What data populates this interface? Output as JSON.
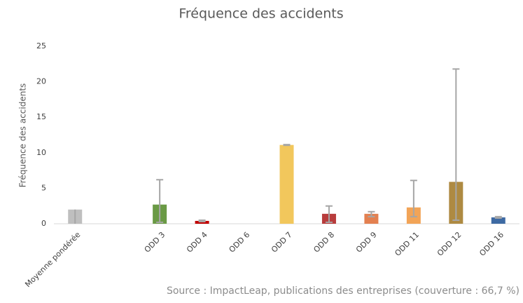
{
  "chart_data": {
    "type": "bar",
    "title": "Fréquence des accidents",
    "y_label": "Fréquence des accidents",
    "source": "Source : ImpactLeap, publications des entreprises (couverture : 66,7 %)",
    "categories": [
      "Moyenne pondérée",
      null,
      "ODD 3",
      "ODD 4",
      "ODD 6",
      "ODD 7",
      "ODD 8",
      "ODD 9",
      "ODD 11",
      "ODD 12",
      "ODD 16"
    ],
    "values": [
      2.0,
      null,
      2.7,
      0.4,
      0,
      11.1,
      1.4,
      1.4,
      2.3,
      5.9,
      0.9
    ],
    "error_plus": [
      0,
      null,
      3.5,
      0.1,
      0,
      0.05,
      1.1,
      0.3,
      3.8,
      15.9,
      0.1
    ],
    "error_minus": [
      2.0,
      null,
      2.5,
      0.1,
      0,
      0.05,
      1.2,
      0.4,
      1.3,
      5.4,
      0.1
    ],
    "colors": [
      "#bfbfbf",
      null,
      "#6a9a45",
      "#c00000",
      null,
      "#f2c75c",
      "#b83c3c",
      "#e38050",
      "#f2a457",
      "#ae8a42",
      "#3e6aa3"
    ],
    "error_color": "#a6a6a6",
    "ylim": [
      0,
      25
    ],
    "yticks": [
      0,
      5,
      10,
      15,
      20,
      25
    ],
    "grid": false
  }
}
